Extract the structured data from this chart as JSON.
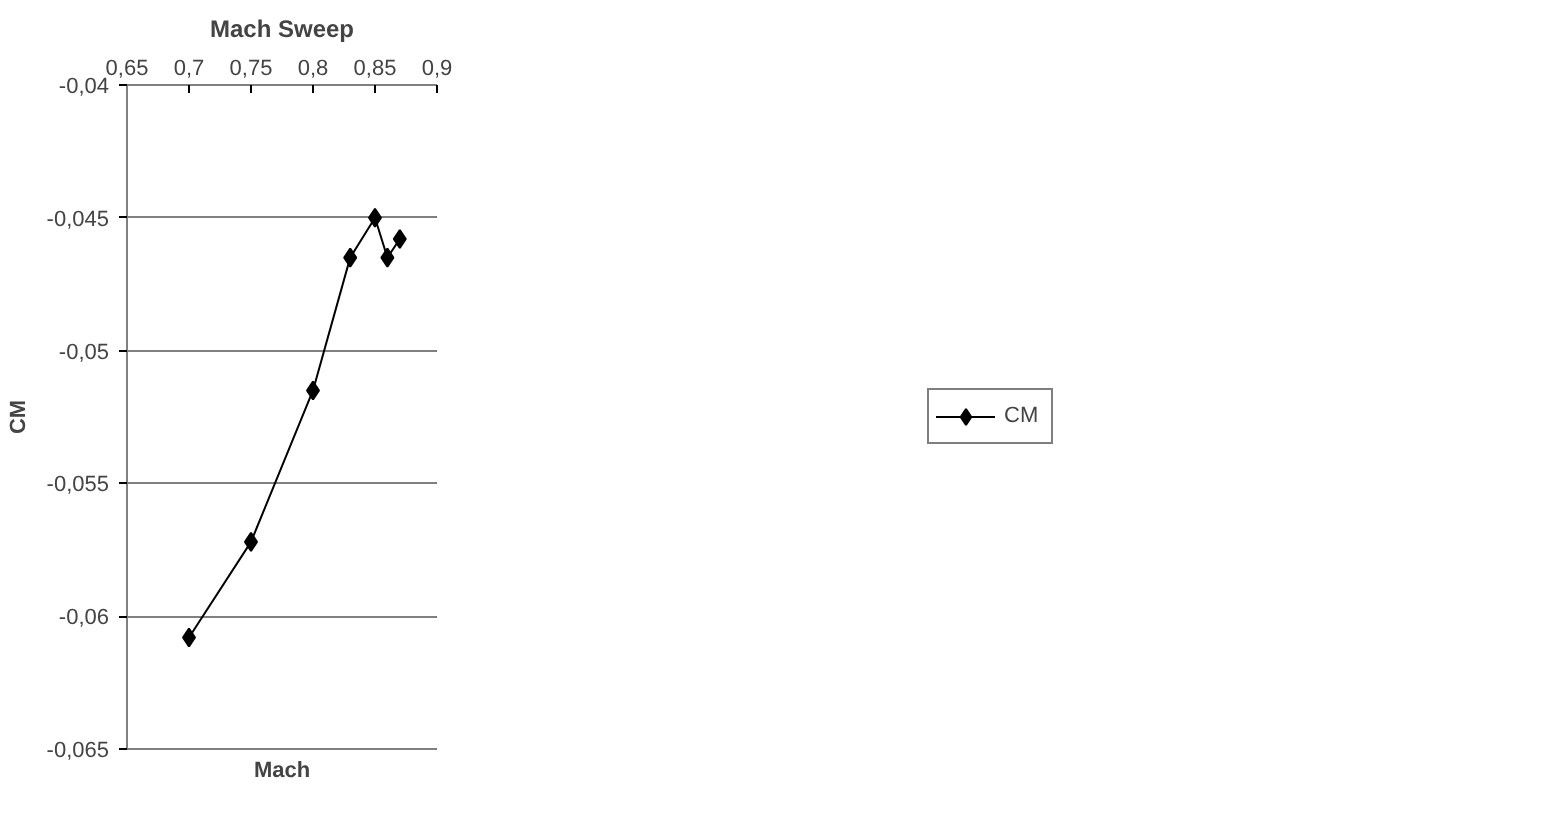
{
  "chart_data": {
    "type": "line",
    "title": "Mach Sweep",
    "xlabel": "Mach",
    "ylabel": "CM",
    "x": [
      0.7,
      0.75,
      0.8,
      0.83,
      0.85,
      0.86,
      0.87
    ],
    "series": [
      {
        "name": "CM",
        "color": "#000000",
        "values": [
          -0.0608,
          -0.0572,
          -0.0515,
          -0.0465,
          -0.045,
          -0.0465,
          -0.0458
        ]
      }
    ],
    "xlim": [
      0.65,
      0.9
    ],
    "xticks": [
      {
        "value": 0.65,
        "label": "0,65"
      },
      {
        "value": 0.7,
        "label": "0,7"
      },
      {
        "value": 0.75,
        "label": "0,75"
      },
      {
        "value": 0.8,
        "label": "0,8"
      },
      {
        "value": 0.85,
        "label": "0,85"
      },
      {
        "value": 0.9,
        "label": "0,9"
      }
    ],
    "ylim": [
      -0.065,
      -0.04
    ],
    "yticks": [
      {
        "value": -0.065,
        "label": "-0,065"
      },
      {
        "value": -0.06,
        "label": "-0,06"
      },
      {
        "value": -0.055,
        "label": "-0,055"
      },
      {
        "value": -0.05,
        "label": "-0,05"
      },
      {
        "value": -0.045,
        "label": "-0,045"
      },
      {
        "value": -0.04,
        "label": "-0,04"
      }
    ],
    "grid": "y",
    "legend": "right",
    "marker": "diamond",
    "line_style": "solid"
  }
}
